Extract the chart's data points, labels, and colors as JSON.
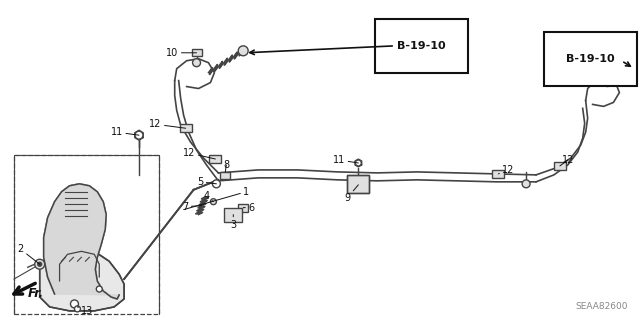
{
  "bg_color": "#ffffff",
  "lc": "#444444",
  "dc": "#111111",
  "diagram_code": "SEAA82600",
  "figsize": [
    6.4,
    3.19
  ],
  "dpi": 100,
  "xlim": [
    0,
    640
  ],
  "ylim": [
    0,
    319
  ]
}
